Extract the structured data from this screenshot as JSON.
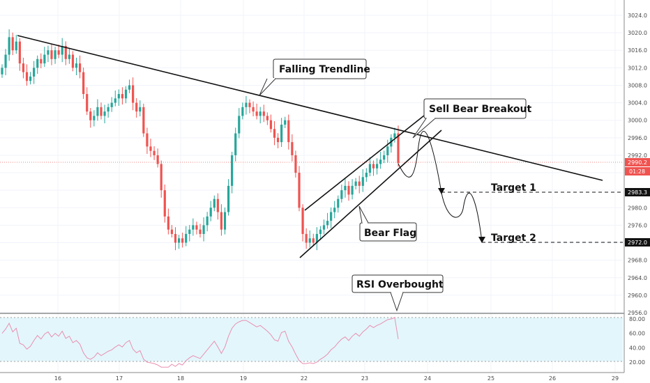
{
  "chart_data": {
    "type": "candlestick",
    "price_axis": {
      "ticks": [
        "3024.0",
        "3020.0",
        "3016.0",
        "3012.0",
        "3008.0",
        "3004.0",
        "3000.0",
        "2996.0",
        "2992.0",
        "2988.0",
        "2984.0",
        "2980.0",
        "2976.0",
        "2972.0",
        "2968.0",
        "2964.0",
        "2960.0",
        "2956.0"
      ],
      "ylim": [
        2955,
        3026
      ]
    },
    "rsi_axis": {
      "ticks": [
        "80.00",
        "60.00",
        "40.00",
        "20.00"
      ],
      "ylim": [
        15,
        85
      ],
      "overbought": 80,
      "oversold": 20
    },
    "time_axis": {
      "ticks": [
        "16",
        "17",
        "18",
        "19",
        "22",
        "23",
        "24",
        "25",
        "26",
        "29"
      ]
    },
    "badges": [
      {
        "value": "2990.2",
        "bg": "#ef5350",
        "fg": "#ffffff"
      },
      {
        "value": "01:28",
        "bg": "#ef5350",
        "fg": "#ffffff"
      },
      {
        "value": "2983.3",
        "bg": "#111111",
        "fg": "#ffffff"
      },
      {
        "value": "2972.0",
        "bg": "#111111",
        "fg": "#ffffff"
      }
    ],
    "annotations": [
      {
        "text": "Falling Trendline"
      },
      {
        "text": "Sell Bear Breakout"
      },
      {
        "text": "Bear Flag"
      },
      {
        "text": "RSI Overbought"
      }
    ],
    "targets": [
      {
        "label": "Target 1",
        "price": 2983.3
      },
      {
        "label": "Target 2",
        "price": 2972.0
      }
    ],
    "trendline": {
      "from": 3019.6,
      "to": 2988.5
    },
    "flag": {
      "upper_from": 2981,
      "upper_to": 3000.5,
      "lower_from": 2968.4,
      "lower_to": 2997.8
    },
    "closes": [
      3012,
      3015,
      3019,
      3016,
      3018,
      3013,
      3011,
      3009,
      3010,
      3012,
      3014,
      3013,
      3015,
      3016,
      3014,
      3016,
      3015,
      3017,
      3014,
      3015,
      3012,
      3013,
      3011,
      3006,
      3002,
      3000,
      3001,
      3003,
      3001,
      3002,
      3003,
      3004,
      3005,
      3006,
      3005,
      3007,
      3008,
      3004,
      3002,
      3003,
      2997,
      2994,
      2993,
      2992,
      2990,
      2984,
      2978,
      2975,
      2974,
      2972,
      2973,
      2972,
      2974,
      2975,
      2976,
      2975,
      2974,
      2976,
      2978,
      2980,
      2982,
      2979,
      2975,
      2979,
      2985,
      2992,
      2997,
      3001,
      3003,
      3004,
      3003,
      3002,
      3001,
      3002,
      3001,
      3000,
      2998,
      2996,
      2995,
      2999,
      3000,
      2995,
      2992,
      2988,
      2980,
      2974,
      2972,
      2973,
      2972,
      2974,
      2975,
      2976,
      2977,
      2979,
      2980,
      2982,
      2984,
      2985,
      2983,
      2985,
      2986,
      2985,
      2987,
      2988,
      2990,
      2989,
      2990,
      2991,
      2992,
      2994,
      2996,
      2997,
      2990.2
    ],
    "rsi": [
      60,
      66,
      74,
      62,
      67,
      46,
      44,
      38,
      42,
      50,
      57,
      52,
      59,
      62,
      55,
      60,
      56,
      63,
      53,
      56,
      47,
      50,
      45,
      33,
      26,
      24,
      27,
      33,
      29,
      32,
      35,
      37,
      41,
      44,
      41,
      47,
      50,
      38,
      33,
      36,
      24,
      20,
      19,
      18,
      16,
      13,
      13,
      13,
      17,
      14,
      18,
      16,
      22,
      26,
      29,
      27,
      25,
      31,
      37,
      43,
      49,
      41,
      32,
      41,
      56,
      67,
      73,
      76,
      78,
      78,
      75,
      72,
      69,
      71,
      67,
      63,
      58,
      51,
      49,
      61,
      63,
      49,
      41,
      31,
      22,
      18,
      18,
      19,
      18,
      20,
      24,
      27,
      31,
      37,
      41,
      47,
      52,
      55,
      50,
      56,
      60,
      56,
      62,
      66,
      71,
      68,
      71,
      73,
      76,
      79,
      80,
      82,
      52
    ]
  }
}
